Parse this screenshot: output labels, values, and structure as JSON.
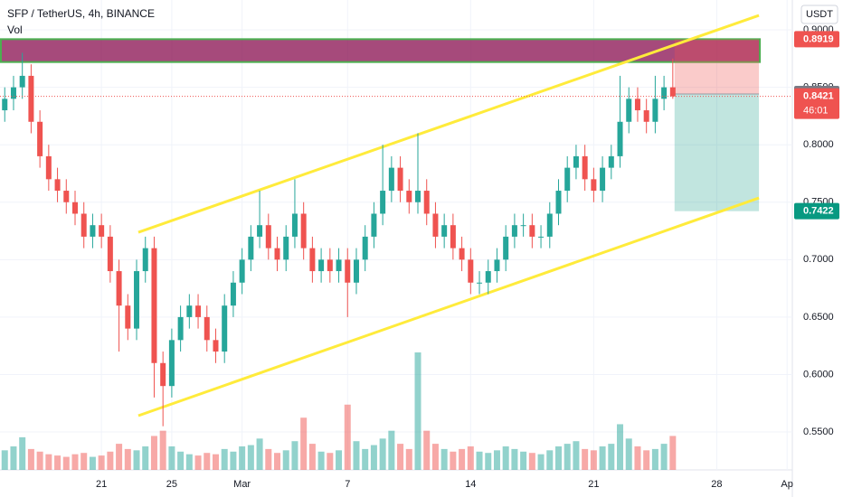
{
  "chart_data": {
    "type": "candlestick",
    "title": "SFP / TetherUS, 4h, BINANCE",
    "volume_label": "Vol",
    "y_unit": "USDT",
    "up_color": "#26a69a",
    "down_color": "#ef5350",
    "x": [
      15.5,
      16,
      16.5,
      17,
      17.5,
      18,
      18.5,
      19,
      19.5,
      20,
      20.5,
      21,
      21.5,
      22,
      22.5,
      23,
      23.5,
      24,
      24.5,
      25,
      25.5,
      26,
      26.5,
      27,
      27.5,
      28,
      28.5,
      29,
      29.5,
      30,
      30.5,
      31,
      31.5,
      32,
      32.5,
      33,
      33.5,
      34,
      34.5,
      35,
      35.5,
      36,
      36.5,
      37,
      37.5,
      38,
      38.5,
      39,
      39.5,
      40,
      40.5,
      41,
      41.5,
      42,
      42.5,
      43,
      43.5,
      44,
      44.5,
      45,
      45.5,
      46,
      46.5,
      47,
      47.5,
      48,
      48.5,
      49,
      49.5,
      50,
      50.5,
      51,
      51.5,
      52,
      52.5,
      53,
      53.5
    ],
    "open": [
      0.83,
      0.84,
      0.85,
      0.86,
      0.82,
      0.79,
      0.77,
      0.76,
      0.75,
      0.74,
      0.72,
      0.73,
      0.72,
      0.69,
      0.66,
      0.64,
      0.69,
      0.71,
      0.61,
      0.59,
      0.63,
      0.65,
      0.66,
      0.65,
      0.63,
      0.62,
      0.66,
      0.68,
      0.7,
      0.72,
      0.73,
      0.71,
      0.7,
      0.72,
      0.74,
      0.71,
      0.69,
      0.7,
      0.69,
      0.7,
      0.68,
      0.7,
      0.72,
      0.74,
      0.76,
      0.78,
      0.76,
      0.75,
      0.76,
      0.74,
      0.72,
      0.73,
      0.71,
      0.7,
      0.68,
      0.68,
      0.69,
      0.7,
      0.72,
      0.73,
      0.73,
      0.72,
      0.72,
      0.74,
      0.76,
      0.78,
      0.79,
      0.77,
      0.76,
      0.78,
      0.79,
      0.82,
      0.84,
      0.83,
      0.82,
      0.84,
      0.85
    ],
    "high": [
      0.85,
      0.86,
      0.88,
      0.87,
      0.83,
      0.8,
      0.78,
      0.77,
      0.76,
      0.75,
      0.74,
      0.74,
      0.73,
      0.7,
      0.67,
      0.7,
      0.72,
      0.72,
      0.62,
      0.64,
      0.66,
      0.67,
      0.67,
      0.66,
      0.64,
      0.67,
      0.69,
      0.71,
      0.73,
      0.76,
      0.74,
      0.72,
      0.73,
      0.77,
      0.75,
      0.72,
      0.71,
      0.71,
      0.71,
      0.71,
      0.71,
      0.73,
      0.75,
      0.8,
      0.79,
      0.79,
      0.77,
      0.81,
      0.77,
      0.75,
      0.74,
      0.74,
      0.72,
      0.71,
      0.69,
      0.7,
      0.71,
      0.73,
      0.74,
      0.74,
      0.74,
      0.73,
      0.75,
      0.77,
      0.79,
      0.8,
      0.8,
      0.78,
      0.79,
      0.8,
      0.86,
      0.85,
      0.85,
      0.84,
      0.86,
      0.86,
      0.875
    ],
    "low": [
      0.82,
      0.83,
      0.84,
      0.81,
      0.78,
      0.76,
      0.75,
      0.74,
      0.73,
      0.71,
      0.71,
      0.71,
      0.68,
      0.62,
      0.63,
      0.63,
      0.68,
      0.58,
      0.555,
      0.58,
      0.62,
      0.64,
      0.64,
      0.62,
      0.61,
      0.61,
      0.65,
      0.67,
      0.69,
      0.71,
      0.7,
      0.69,
      0.69,
      0.71,
      0.7,
      0.68,
      0.68,
      0.68,
      0.68,
      0.65,
      0.67,
      0.69,
      0.71,
      0.73,
      0.75,
      0.75,
      0.74,
      0.74,
      0.73,
      0.71,
      0.71,
      0.7,
      0.69,
      0.67,
      0.67,
      0.67,
      0.68,
      0.69,
      0.71,
      0.72,
      0.71,
      0.71,
      0.71,
      0.73,
      0.75,
      0.77,
      0.76,
      0.75,
      0.75,
      0.77,
      0.78,
      0.81,
      0.82,
      0.81,
      0.81,
      0.83,
      0.84
    ],
    "close": [
      0.84,
      0.85,
      0.86,
      0.82,
      0.79,
      0.77,
      0.76,
      0.75,
      0.74,
      0.72,
      0.73,
      0.72,
      0.69,
      0.66,
      0.64,
      0.69,
      0.71,
      0.61,
      0.59,
      0.63,
      0.65,
      0.66,
      0.65,
      0.63,
      0.62,
      0.66,
      0.68,
      0.7,
      0.72,
      0.73,
      0.71,
      0.7,
      0.72,
      0.74,
      0.71,
      0.69,
      0.7,
      0.69,
      0.7,
      0.68,
      0.7,
      0.72,
      0.74,
      0.76,
      0.78,
      0.76,
      0.75,
      0.76,
      0.74,
      0.72,
      0.73,
      0.71,
      0.7,
      0.68,
      0.68,
      0.69,
      0.7,
      0.72,
      0.73,
      0.73,
      0.72,
      0.72,
      0.74,
      0.76,
      0.78,
      0.79,
      0.77,
      0.76,
      0.78,
      0.79,
      0.82,
      0.84,
      0.83,
      0.82,
      0.84,
      0.85,
      0.8421
    ],
    "volume": [
      1.5,
      1.8,
      2.5,
      1.6,
      1.4,
      1.2,
      1.1,
      1.0,
      1.2,
      1.3,
      1.0,
      1.1,
      1.4,
      2.0,
      1.6,
      1.5,
      1.8,
      2.6,
      3.0,
      1.8,
      1.4,
      1.2,
      1.1,
      1.3,
      1.2,
      1.6,
      1.4,
      1.8,
      1.9,
      2.4,
      1.6,
      1.3,
      1.5,
      2.2,
      4.0,
      2.0,
      1.4,
      1.3,
      1.5,
      5.0,
      2.2,
      1.6,
      1.9,
      2.4,
      3.0,
      2.0,
      1.6,
      9.0,
      3.0,
      2.0,
      1.6,
      1.4,
      1.6,
      1.8,
      1.4,
      1.3,
      1.5,
      1.8,
      1.6,
      1.4,
      1.3,
      1.2,
      1.5,
      1.8,
      2.0,
      2.2,
      1.6,
      1.5,
      1.8,
      2.0,
      3.5,
      2.4,
      1.8,
      1.5,
      1.6,
      2.0,
      2.6
    ],
    "xlim": [
      15.23,
      60.3
    ],
    "xticks": [
      {
        "value": 21,
        "label": "21"
      },
      {
        "value": 25,
        "label": "25"
      },
      {
        "value": 29,
        "label": "Mar"
      },
      {
        "value": 35,
        "label": "7"
      },
      {
        "value": 42,
        "label": "14"
      },
      {
        "value": 49,
        "label": "21"
      },
      {
        "value": 56,
        "label": "28"
      },
      {
        "value": 60,
        "label": "Ap"
      }
    ],
    "ylim": [
      0.517,
      0.926
    ],
    "yticks": [
      {
        "value": 0.9,
        "label": "0.9000"
      },
      {
        "value": 0.85,
        "label": "0.8500"
      },
      {
        "value": 0.8,
        "label": "0.8000"
      },
      {
        "value": 0.75,
        "label": "0.7500"
      },
      {
        "value": 0.7,
        "label": "0.7000"
      },
      {
        "value": 0.65,
        "label": "0.6500"
      },
      {
        "value": 0.6,
        "label": "0.6000"
      },
      {
        "value": 0.55,
        "label": "0.5500"
      }
    ],
    "channel": {
      "color": "#ffeb3b",
      "upper": {
        "x": [
          23.1,
          58.4
        ],
        "y": [
          0.7238,
          0.9126
        ]
      },
      "lower": {
        "x": [
          23.1,
          58.4
        ],
        "y": [
          0.5642,
          0.7537
        ]
      }
    },
    "zone": {
      "color": "#4caf50",
      "x": [
        15.23,
        58.4
      ],
      "y": [
        0.872,
        0.8919
      ]
    },
    "position": {
      "x": [
        53.6,
        58.4
      ],
      "entry": 0.8442,
      "stop": 0.8919,
      "target": 0.7422
    },
    "last_price": 0.8421,
    "countdown": "46:01"
  }
}
